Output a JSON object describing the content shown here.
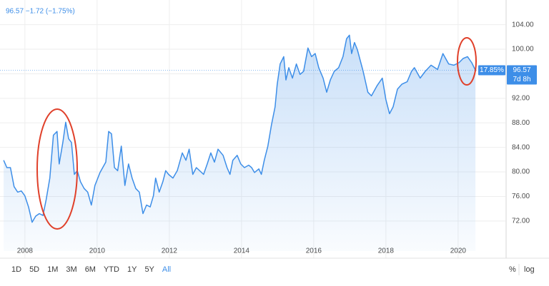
{
  "header": {
    "quote": "96.57 −1.72 (−1.75%)"
  },
  "chart_data": {
    "type": "area",
    "x": [
      2007.41,
      2007.5,
      2007.6,
      2007.7,
      2007.8,
      2007.9,
      2008.0,
      2008.1,
      2008.2,
      2008.3,
      2008.4,
      2008.5,
      2008.59,
      2008.69,
      2008.79,
      2008.89,
      2008.95,
      2009.05,
      2009.13,
      2009.21,
      2009.29,
      2009.37,
      2009.45,
      2009.54,
      2009.64,
      2009.74,
      2009.84,
      2009.94,
      2010.08,
      2010.24,
      2010.32,
      2010.4,
      2010.48,
      2010.57,
      2010.67,
      2010.77,
      2010.87,
      2010.97,
      2011.07,
      2011.17,
      2011.27,
      2011.37,
      2011.47,
      2011.56,
      2011.62,
      2011.72,
      2011.82,
      2011.9,
      2011.98,
      2012.1,
      2012.22,
      2012.36,
      2012.46,
      2012.55,
      2012.65,
      2012.75,
      2012.95,
      2013.05,
      2013.15,
      2013.25,
      2013.35,
      2013.49,
      2013.6,
      2013.68,
      2013.76,
      2013.88,
      2013.98,
      2014.08,
      2014.2,
      2014.28,
      2014.36,
      2014.48,
      2014.55,
      2014.63,
      2014.73,
      2014.83,
      2014.93,
      2014.99,
      2015.07,
      2015.17,
      2015.23,
      2015.31,
      2015.41,
      2015.52,
      2015.62,
      2015.72,
      2015.84,
      2015.94,
      2016.04,
      2016.14,
      2016.26,
      2016.36,
      2016.46,
      2016.57,
      2016.69,
      2016.81,
      2016.91,
      2016.99,
      2017.05,
      2017.13,
      2017.21,
      2017.37,
      2017.5,
      2017.6,
      2017.76,
      2017.9,
      2018.0,
      2018.1,
      2018.2,
      2018.32,
      2018.44,
      2018.59,
      2018.71,
      2018.79,
      2018.95,
      2019.09,
      2019.25,
      2019.43,
      2019.58,
      2019.74,
      2019.88,
      2020.02,
      2020.14,
      2020.26,
      2020.38,
      2020.48
    ],
    "series": [
      {
        "color": "#3d8ee8",
        "values": [
          81.9,
          80.7,
          80.7,
          77.6,
          76.7,
          76.9,
          76.1,
          74.3,
          71.8,
          72.8,
          73.2,
          72.9,
          75.5,
          79.0,
          86.0,
          86.6,
          81.3,
          84.8,
          88.1,
          85.4,
          84.8,
          79.6,
          80.2,
          78.4,
          77.3,
          76.7,
          74.6,
          77.8,
          79.9,
          81.6,
          86.6,
          86.2,
          80.7,
          80.2,
          84.2,
          77.8,
          81.3,
          79.0,
          77.3,
          76.7,
          73.2,
          74.6,
          74.3,
          76.1,
          79.0,
          76.7,
          78.4,
          80.2,
          79.6,
          79.0,
          80.2,
          83.1,
          81.9,
          83.7,
          79.6,
          80.7,
          79.6,
          81.3,
          83.1,
          81.6,
          83.7,
          82.7,
          80.7,
          79.6,
          81.9,
          82.7,
          81.3,
          80.7,
          81.1,
          80.7,
          79.9,
          80.5,
          79.6,
          81.9,
          84.2,
          87.7,
          90.6,
          94.3,
          97.6,
          98.8,
          95.0,
          97.0,
          95.3,
          97.6,
          95.9,
          96.4,
          100.2,
          98.8,
          99.3,
          97.0,
          95.3,
          93.0,
          95.0,
          96.4,
          97.0,
          98.8,
          101.7,
          102.3,
          99.3,
          101.1,
          99.9,
          96.4,
          93.0,
          92.4,
          94.1,
          95.3,
          91.8,
          89.5,
          90.6,
          93.5,
          94.3,
          94.7,
          96.4,
          97.0,
          95.3,
          96.4,
          97.4,
          96.7,
          99.3,
          97.6,
          97.4,
          97.8,
          98.5,
          98.8,
          97.8,
          96.57
        ]
      }
    ],
    "xlim": [
      2007.31,
      2021.31
    ],
    "ylim": [
      67.1,
      107.1
    ],
    "xticks": [
      2008,
      2010,
      2012,
      2014,
      2016,
      2018,
      2020
    ],
    "yticks": [
      {
        "value": 72,
        "label": "72.00"
      },
      {
        "value": 76,
        "label": "76.00"
      },
      {
        "value": 80,
        "label": "80.00"
      },
      {
        "value": 84,
        "label": "84.00"
      },
      {
        "value": 88,
        "label": "88.00"
      },
      {
        "value": 92,
        "label": "92.00"
      },
      {
        "value": 96,
        "label": "96.00"
      },
      {
        "value": 100,
        "label": "100.00"
      },
      {
        "value": 104,
        "label": "104.00"
      }
    ],
    "grid": true,
    "last_price": 96.57,
    "change_label": "17.85%",
    "countdown": "7d 8h"
  },
  "toolbar": {
    "ranges": [
      "1D",
      "5D",
      "1M",
      "3M",
      "6M",
      "YTD",
      "1Y",
      "5Y",
      "All"
    ],
    "options": [
      "%",
      "log"
    ]
  }
}
